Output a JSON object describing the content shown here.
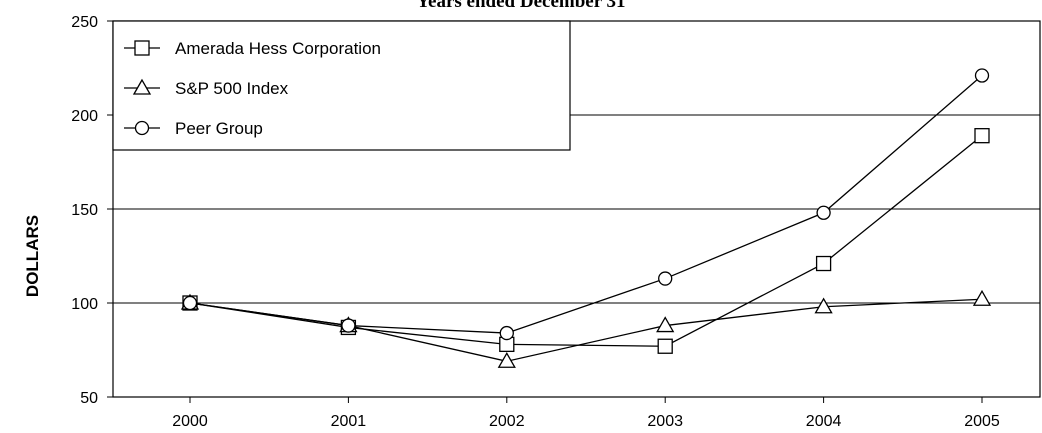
{
  "chart_data": {
    "type": "line",
    "title": "Years ended December 31",
    "xlabel": "",
    "ylabel": "DOLLARS",
    "x": [
      "2000",
      "2001",
      "2002",
      "2003",
      "2004",
      "2005"
    ],
    "ylim": [
      50,
      250
    ],
    "yticks": [
      50,
      100,
      150,
      200,
      250
    ],
    "grid": "horizontal",
    "legend_position": "top-left",
    "series": [
      {
        "name": "Amerada Hess Corporation",
        "marker": "square",
        "values": [
          100,
          87,
          78,
          77,
          121,
          189
        ]
      },
      {
        "name": "S&P 500 Index",
        "marker": "triangle",
        "values": [
          100,
          88,
          69,
          88,
          98,
          102
        ]
      },
      {
        "name": "Peer Group",
        "marker": "circle",
        "values": [
          100,
          88,
          84,
          113,
          148,
          221
        ]
      }
    ]
  }
}
